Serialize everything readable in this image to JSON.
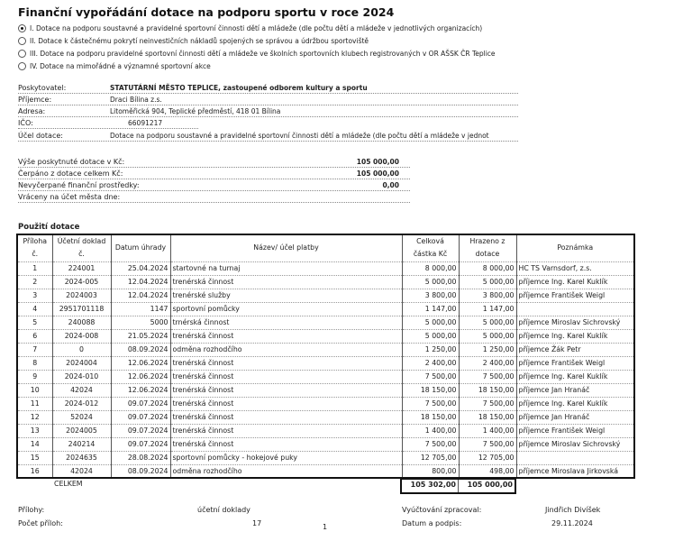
{
  "title": "Finanční vypořádání dotace na podporu sportu v roce 2024",
  "options": [
    {
      "label": "I. Dotace na podporu soustavné a pravidelné sportovní činnosti dětí a mládeže (dle počtu dětí a mládeže v jednotlivých organizacích)",
      "selected": true
    },
    {
      "label": "II. Dotace k  částečnému pokrytí neinvestičních nákladů spojených se správou a údržbou sportoviště",
      "selected": false
    },
    {
      "label": "III. Dotace na podporu pravidelné sportovní činnosti dětí a mládeže ve školních sportovních klubech registrovaných v OR AŠSK ČR Teplice",
      "selected": false
    },
    {
      "label": "IV. Dotace na mimořádné a významné sportovní akce",
      "selected": false
    }
  ],
  "info": [
    {
      "label": "Poskytovatel:",
      "value": "STATUTÁRNÍ MĚSTO TEPLICE, zastoupené odborem kultury a sportu"
    },
    {
      "label": "Příjemce:",
      "value": "Draci Bílina z.s."
    },
    {
      "label": "Adresa:",
      "value": "Litoměřická 904, Teplické předměstí, 418 01 Bílina"
    },
    {
      "label": "IČO:",
      "value": "66091217"
    },
    {
      "label": "Účel dotace:",
      "value": "Dotace na podporu soustavné a pravidelné sportovní činnosti dětí a mládeže (dle počtu dětí a mládeže v jednot"
    }
  ],
  "summary": [
    {
      "label": "Výše poskytnuté dotace v Kč:",
      "value": "105 000,00"
    },
    {
      "label": "Čerpáno z dotace celkem Kč:",
      "value": "105 000,00"
    },
    {
      "label": "Nevyčerpané finanční  prostředky:",
      "value": "0,00"
    },
    {
      "label": "Vráceny na účet města dne:",
      "value": ""
    }
  ],
  "usage_title": "Použití dotace",
  "columns": [
    "Příloha č.",
    "Účetní doklad č.",
    "Datum úhrady",
    "Název/ účel platby",
    "Celková částka Kč",
    "Hrazeno z dotace",
    "Poznámka"
  ],
  "rows": [
    [
      "1",
      "224001",
      "25.04.2024",
      "startovné na turnaj",
      "8 000,00",
      "8 000,00",
      "HC TS Varnsdorf, z.s."
    ],
    [
      "2",
      "2024-005",
      "12.04.2024",
      "trenérská činnost",
      "5 000,00",
      "5 000,00",
      "příjemce Ing. Karel Kuklík"
    ],
    [
      "3",
      "2024003",
      "12.04.2024",
      "trenérské služby",
      "3 800,00",
      "3 800,00",
      "příjemce František Weigl"
    ],
    [
      "4",
      "2951701118",
      "1147",
      "sportovní pomůcky",
      "1 147,00",
      "1 147,00",
      ""
    ],
    [
      "5",
      "240088",
      "5000",
      "trnérská činnost",
      "5 000,00",
      "5 000,00",
      "příjemce Miroslav Sichrovský"
    ],
    [
      "6",
      "2024-008",
      "21.05.2024",
      "trenérská činnost",
      "5 000,00",
      "5 000,00",
      "příjemce Ing. Karel Kuklík"
    ],
    [
      "7",
      "0",
      "08.09.2024",
      "odměna rozhodčího",
      "1 250,00",
      "1 250,00",
      "příjemce Žák Petr"
    ],
    [
      "8",
      "2024004",
      "12.06.2024",
      "trenérská činnost",
      "2 400,00",
      "2 400,00",
      "příjemce František Weigl"
    ],
    [
      "9",
      "2024-010",
      "12.06.2024",
      "trenérská činnost",
      "7 500,00",
      "7 500,00",
      "příjemce Ing. Karel Kuklík"
    ],
    [
      "10",
      "42024",
      "12.06.2024",
      "trenérská činnost",
      "18 150,00",
      "18 150,00",
      "příjemce Jan Hranáč"
    ],
    [
      "11",
      "2024-012",
      "09.07.2024",
      "trenérská činnost",
      "7 500,00",
      "7 500,00",
      "příjemce Ing. Karel Kuklík"
    ],
    [
      "12",
      "52024",
      "09.07.2024",
      "trenérská činnost",
      "18 150,00",
      "18 150,00",
      "příjemce Jan Hranáč"
    ],
    [
      "13",
      "2024005",
      "09.07.2024",
      "trenérská činnost",
      "1 400,00",
      "1 400,00",
      "příjemce František Weigl"
    ],
    [
      "14",
      "240214",
      "09.07.2024",
      "trenérská činnost",
      "7 500,00",
      "7 500,00",
      "příjemce Miroslav Sichrovský"
    ],
    [
      "15",
      "2024635",
      "28.08.2024",
      "sportovní pomůcky - hokejové puky",
      "12 705,00",
      "12 705,00",
      ""
    ],
    [
      "16",
      "42024",
      "08.09.2024",
      "odměna rozhodčího",
      "800,00",
      "498,00",
      "příjemce Miroslava Jirkovská"
    ]
  ],
  "total_label": "CELKEM",
  "total_amount": "105 302,00",
  "total_subsidy": "105 000,00",
  "footer": {
    "attachments_label": "Přílohy:",
    "attachments_value": "účetní doklady",
    "count_label": "Počet příloh:",
    "count_value": "17",
    "page_number": "1",
    "processed_label": "Vyúčtování zpracoval:",
    "processed_value": "Jindřich Divíšek",
    "date_label": "Datum a podpis:",
    "date_value": "29.11.2024"
  }
}
